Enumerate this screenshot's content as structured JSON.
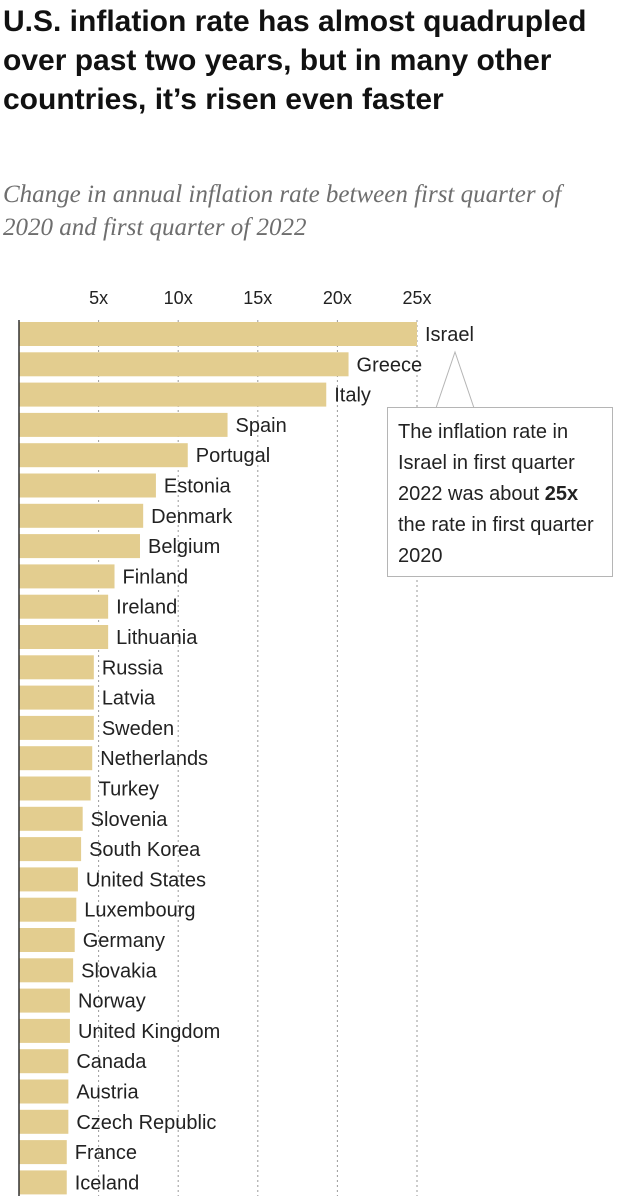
{
  "title": "U.S. inflation rate has almost quadrupled over past two years, but in many other countries, it’s risen even faster",
  "subtitle": "Change in annual inflation rate between first quarter of 2020 and first quarter of 2022",
  "callout": {
    "text_before": "The inflation rate in Israel in first quarter 2022 was about ",
    "bold": "25x",
    "text_after": " the rate in first quarter 2020"
  },
  "colors": {
    "bar": "#e3cd8f",
    "grid": "#9a9a9a",
    "axis": "#333333"
  },
  "chart_data": {
    "type": "bar",
    "orientation": "horizontal",
    "title": "U.S. inflation rate has almost quadrupled over past two years, but in many other countries, it’s risen even faster",
    "subtitle": "Change in annual inflation rate between first quarter of 2020 and first quarter of 2022",
    "xlabel": "",
    "ylabel": "",
    "xlim": [
      0,
      25
    ],
    "xticks": [
      5,
      10,
      15,
      20,
      25
    ],
    "xtick_labels": [
      "5x",
      "10x",
      "15x",
      "20x",
      "25x"
    ],
    "grid": "vertical dotted",
    "categories": [
      "Israel",
      "Greece",
      "Italy",
      "Spain",
      "Portugal",
      "Estonia",
      "Denmark",
      "Belgium",
      "Finland",
      "Ireland",
      "Lithuania",
      "Russia",
      "Latvia",
      "Sweden",
      "Netherlands",
      "Turkey",
      "Slovenia",
      "South Korea",
      "United States",
      "Luxembourg",
      "Germany",
      "Slovakia",
      "Norway",
      "United Kingdom",
      "Canada",
      "Austria",
      "Czech Republic",
      "France",
      "Iceland"
    ],
    "values": [
      25.0,
      20.7,
      19.3,
      13.1,
      10.6,
      8.6,
      7.8,
      7.6,
      6.0,
      5.6,
      5.6,
      4.7,
      4.7,
      4.7,
      4.6,
      4.5,
      4.0,
      3.9,
      3.7,
      3.6,
      3.5,
      3.4,
      3.2,
      3.2,
      3.1,
      3.1,
      3.1,
      3.0,
      3.0
    ]
  }
}
